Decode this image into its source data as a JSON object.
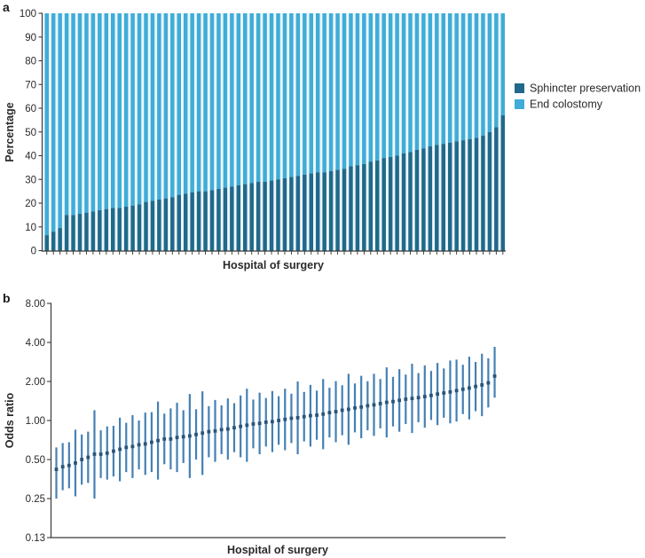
{
  "colors": {
    "sphincter_dark_blue": "#20698b",
    "colostomy_light_blue": "#3fadd8",
    "panel_a_background": "#eef7fb",
    "ci_line_blue": "#4580b4",
    "point_dot_navy": "#2a5578",
    "axis_gray": "#3a3a3a"
  },
  "chart_data": [
    {
      "type": "bar",
      "panel_label": "a",
      "stacked": true,
      "orientation": "vertical",
      "xlabel": "Hospital of surgery",
      "ylabel": "Percentage",
      "ylim": [
        0,
        100
      ],
      "yticks": [
        0,
        10,
        20,
        30,
        40,
        50,
        60,
        70,
        80,
        90,
        100
      ],
      "grid": false,
      "legend_position": "right",
      "x_categories_labeled": false,
      "n_hospitals": 70,
      "series": [
        {
          "name": "Sphincter preservation",
          "color": "#20698b",
          "values": [
            6.5,
            8,
            9.5,
            15,
            15,
            15.5,
            16,
            16.5,
            17,
            17.5,
            18,
            18,
            18.5,
            19,
            19.5,
            20.5,
            21,
            21.5,
            22,
            22.5,
            23.5,
            24,
            24.5,
            25,
            25,
            25.5,
            26,
            26.5,
            27,
            27.5,
            28,
            28.5,
            29,
            29,
            29.5,
            30,
            30.5,
            31,
            31.5,
            32,
            32.5,
            33,
            33,
            33.5,
            34,
            34.5,
            35.5,
            36,
            36.5,
            37.5,
            38,
            39,
            39.5,
            40,
            41,
            41.5,
            42.5,
            43,
            44,
            44.5,
            45,
            45.5,
            46,
            46.5,
            47,
            47.5,
            48.5,
            50,
            52,
            57
          ]
        },
        {
          "name": "End colostomy",
          "color": "#3fadd8",
          "values": [
            93.5,
            92,
            90.5,
            85,
            85,
            84.5,
            84,
            83.5,
            83,
            82.5,
            82,
            82,
            81.5,
            81,
            80.5,
            79.5,
            79,
            78.5,
            78,
            77.5,
            76.5,
            76,
            75.5,
            75,
            75,
            74.5,
            74,
            73.5,
            73,
            72.5,
            72,
            71.5,
            71,
            71,
            70.5,
            70,
            69.5,
            69,
            68.5,
            68,
            67.5,
            67,
            67,
            66.5,
            66,
            65.5,
            64.5,
            64,
            63.5,
            62.5,
            62,
            61,
            60.5,
            60,
            59,
            58.5,
            57.5,
            57,
            56,
            55.5,
            55,
            54.5,
            54,
            53.5,
            53,
            52.5,
            51.5,
            50,
            48,
            43
          ]
        }
      ]
    },
    {
      "type": "scatter",
      "panel_label": "b",
      "subtype": "point-estimates-with-95ci",
      "xlabel": "Hospital of surgery",
      "ylabel": "Odds ratio",
      "yscale": "log2",
      "ylim": [
        0.13,
        8.0
      ],
      "grid": false,
      "x_categories_labeled": false,
      "n_hospitals": 70,
      "yticks": [
        {
          "label": "8.00",
          "value": 8
        },
        {
          "label": "4.00",
          "value": 4
        },
        {
          "label": "2.00",
          "value": 2
        },
        {
          "label": "1.00",
          "value": 1
        },
        {
          "label": "0.50",
          "value": 0.5
        },
        {
          "label": "0.25",
          "value": 0.25
        },
        {
          "label": "0.13",
          "value": 0.125
        }
      ],
      "odds_ratio": [
        0.42,
        0.44,
        0.45,
        0.47,
        0.5,
        0.52,
        0.55,
        0.55,
        0.56,
        0.58,
        0.6,
        0.62,
        0.63,
        0.65,
        0.66,
        0.68,
        0.7,
        0.72,
        0.72,
        0.74,
        0.75,
        0.76,
        0.78,
        0.8,
        0.82,
        0.83,
        0.85,
        0.86,
        0.88,
        0.9,
        0.92,
        0.94,
        0.95,
        0.97,
        0.98,
        1.0,
        1.02,
        1.04,
        1.05,
        1.07,
        1.09,
        1.1,
        1.12,
        1.15,
        1.17,
        1.2,
        1.22,
        1.25,
        1.27,
        1.3,
        1.32,
        1.35,
        1.38,
        1.4,
        1.43,
        1.46,
        1.48,
        1.5,
        1.53,
        1.56,
        1.6,
        1.63,
        1.66,
        1.7,
        1.74,
        1.78,
        1.83,
        1.88,
        1.95,
        2.2
      ],
      "ci_low": [
        0.25,
        0.29,
        0.3,
        0.26,
        0.32,
        0.33,
        0.25,
        0.36,
        0.35,
        0.37,
        0.34,
        0.4,
        0.36,
        0.42,
        0.38,
        0.4,
        0.35,
        0.46,
        0.42,
        0.4,
        0.47,
        0.36,
        0.5,
        0.38,
        0.52,
        0.48,
        0.55,
        0.5,
        0.57,
        0.52,
        0.48,
        0.61,
        0.55,
        0.63,
        0.57,
        0.65,
        0.59,
        0.67,
        0.55,
        0.69,
        0.63,
        0.71,
        0.6,
        0.74,
        0.68,
        0.77,
        0.65,
        0.81,
        0.73,
        0.84,
        0.76,
        0.87,
        0.74,
        0.9,
        0.82,
        0.94,
        0.8,
        0.97,
        0.88,
        1.01,
        0.92,
        1.05,
        0.95,
        0.98,
        1.12,
        1.02,
        1.18,
        1.08,
        1.26,
        1.5
      ],
      "ci_high": [
        0.62,
        0.67,
        0.68,
        0.85,
        0.78,
        0.82,
        1.2,
        0.84,
        0.9,
        0.91,
        1.05,
        0.96,
        1.1,
        1.0,
        1.15,
        1.16,
        1.4,
        1.13,
        1.24,
        1.37,
        1.2,
        1.6,
        1.22,
        1.68,
        1.29,
        1.44,
        1.31,
        1.48,
        1.36,
        1.56,
        1.76,
        1.45,
        1.64,
        1.49,
        1.69,
        1.54,
        1.76,
        1.61,
        2.0,
        1.66,
        1.88,
        1.7,
        2.09,
        1.79,
        2.01,
        1.87,
        2.29,
        1.93,
        2.21,
        2.01,
        2.29,
        2.09,
        2.57,
        2.17,
        2.49,
        2.26,
        2.74,
        2.32,
        2.66,
        2.41,
        2.78,
        2.52,
        2.9,
        2.95,
        2.69,
        3.1,
        2.83,
        3.27,
        3.02,
        3.7
      ]
    }
  ]
}
